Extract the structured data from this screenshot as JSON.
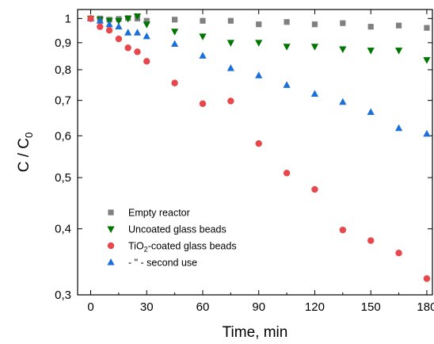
{
  "chart_data": {
    "type": "scatter",
    "xlabel": "Time, min",
    "ylabel": {
      "main": "C / C",
      "subscript": "0"
    },
    "xlim": [
      -7,
      183
    ],
    "ylim": [
      0.3,
      1.04
    ],
    "y_scale": "log",
    "grid": false,
    "legend_position": "bottom-left",
    "x_ticks": [
      {
        "value": 0,
        "label": "0"
      },
      {
        "value": 30,
        "label": "30"
      },
      {
        "value": 60,
        "label": "60"
      },
      {
        "value": 90,
        "label": "90"
      },
      {
        "value": 120,
        "label": "120"
      },
      {
        "value": 150,
        "label": "150"
      },
      {
        "value": 180,
        "label": "180"
      }
    ],
    "x_minor_ticks": [
      15,
      45,
      75,
      105,
      135,
      165
    ],
    "y_ticks": [
      {
        "value": 0.3,
        "label": "0,3"
      },
      {
        "value": 0.4,
        "label": "0,4"
      },
      {
        "value": 0.5,
        "label": "0,5"
      },
      {
        "value": 0.6,
        "label": "0,6"
      },
      {
        "value": 0.7,
        "label": "0,7"
      },
      {
        "value": 0.8,
        "label": "0,8"
      },
      {
        "value": 0.9,
        "label": "0,9"
      },
      {
        "value": 1.0,
        "label": "1"
      }
    ],
    "series": [
      {
        "name": "Empty reactor",
        "marker": "square",
        "color": "#808080",
        "x": [
          0,
          5,
          10,
          15,
          20,
          25,
          30,
          45,
          60,
          75,
          90,
          105,
          120,
          135,
          150,
          165,
          180
        ],
        "y": [
          1.0,
          1.0,
          0.995,
          0.998,
          1.002,
          1.0,
          0.99,
          0.995,
          0.99,
          0.99,
          0.975,
          0.985,
          0.975,
          0.98,
          0.965,
          0.97,
          0.96
        ]
      },
      {
        "name": "Uncoated glass beads",
        "marker": "triangle-down",
        "color": "#007500",
        "x": [
          0,
          5,
          10,
          15,
          20,
          25,
          30,
          45,
          60,
          75,
          90,
          105,
          120,
          135,
          150,
          165,
          180
        ],
        "y": [
          1.0,
          0.995,
          0.99,
          0.99,
          1.0,
          1.01,
          0.975,
          0.945,
          0.925,
          0.9,
          0.9,
          0.885,
          0.885,
          0.875,
          0.87,
          0.87,
          0.835
        ]
      },
      {
        "name": {
          "main": "TiO",
          "subscript": "2",
          "rest": "-coated glass beads"
        },
        "marker": "circle",
        "color": "#E8474C",
        "x": [
          0,
          5,
          10,
          15,
          20,
          25,
          30,
          45,
          60,
          75,
          90,
          105,
          120,
          135,
          150,
          165,
          180
        ],
        "y": [
          1.0,
          0.965,
          0.95,
          0.915,
          0.88,
          0.865,
          0.83,
          0.755,
          0.69,
          0.698,
          0.58,
          0.51,
          0.475,
          0.398,
          0.38,
          0.36,
          0.322
        ]
      },
      {
        "name": "- \" - second use",
        "marker": "triangle-up",
        "color": "#1A6FD8",
        "x": [
          0,
          5,
          10,
          15,
          20,
          25,
          30,
          45,
          60,
          75,
          90,
          105,
          120,
          135,
          150,
          165,
          180
        ],
        "y": [
          1.0,
          0.99,
          0.975,
          0.965,
          0.94,
          0.94,
          0.925,
          0.895,
          0.85,
          0.805,
          0.78,
          0.748,
          0.72,
          0.695,
          0.665,
          0.62,
          0.605
        ]
      }
    ]
  }
}
